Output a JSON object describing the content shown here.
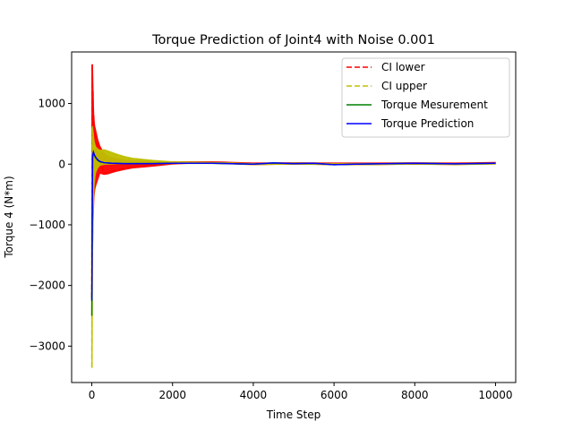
{
  "chart_data": {
    "type": "line",
    "title": "Torque Prediction of Joint4 with Noise 0.001",
    "xlabel": "Time Step",
    "ylabel": "Torque 4 (N*m)",
    "xlim": [
      -500,
      10500
    ],
    "ylim": [
      -3600,
      1850
    ],
    "xticks": [
      0,
      2000,
      4000,
      6000,
      8000,
      10000
    ],
    "yticks": [
      -3000,
      -2000,
      -1000,
      0,
      1000
    ],
    "grid": false,
    "legend_position": "top-right",
    "series": [
      {
        "name": "CI lower",
        "color": "#ff0000",
        "style": "dashed",
        "x": [
          0,
          10,
          20,
          30,
          40,
          50,
          60,
          80,
          100,
          150,
          200,
          300,
          400,
          600,
          800,
          1000,
          1500,
          2000,
          2500,
          3000,
          3300,
          4000,
          5000,
          6000,
          7000,
          8000,
          9000,
          10000
        ],
        "y": [
          -2200,
          1630,
          -600,
          1200,
          -300,
          800,
          -200,
          600,
          400,
          300,
          120,
          -160,
          -140,
          -100,
          -70,
          -50,
          -20,
          20,
          30,
          30,
          25,
          0,
          10,
          5,
          5,
          10,
          5,
          15
        ],
        "envelope_upper": [
          1640,
          1640,
          1640,
          1300,
          1000,
          800,
          700,
          600,
          550,
          400,
          300,
          180,
          130,
          90,
          70,
          55,
          40,
          40,
          40,
          40,
          35,
          20,
          25,
          20,
          20,
          25,
          20,
          30
        ],
        "envelope_lower": [
          -2300,
          -2200,
          -1400,
          -1000,
          -800,
          -600,
          -500,
          -400,
          -350,
          -250,
          -150,
          -170,
          -160,
          -120,
          -90,
          -65,
          -35,
          0,
          15,
          15,
          10,
          -10,
          0,
          -10,
          -10,
          0,
          -10,
          5
        ]
      },
      {
        "name": "CI upper",
        "color": "#bfbf00",
        "style": "dashed",
        "x": [
          0,
          10,
          20,
          30,
          40,
          50,
          60,
          80,
          100,
          150,
          200,
          300,
          400,
          600,
          800,
          1000,
          1500,
          2000,
          2500,
          3000,
          3300,
          4000,
          5000,
          6000,
          7000,
          8000,
          9000,
          10000
        ],
        "y": [
          -3350,
          600,
          -1100,
          400,
          -300,
          350,
          -100,
          300,
          250,
          230,
          200,
          220,
          200,
          150,
          110,
          90,
          50,
          30,
          25,
          20,
          15,
          0,
          10,
          0,
          0,
          10,
          0,
          10
        ],
        "envelope_upper": [
          -2300,
          620,
          620,
          550,
          500,
          430,
          380,
          320,
          280,
          250,
          230,
          240,
          220,
          170,
          130,
          100,
          65,
          40,
          35,
          30,
          25,
          10,
          20,
          10,
          10,
          20,
          10,
          20
        ],
        "envelope_lower": [
          -3350,
          -3350,
          -1500,
          -900,
          -700,
          -500,
          -350,
          -200,
          -130,
          -60,
          -20,
          -5,
          0,
          5,
          5,
          5,
          5,
          10,
          10,
          10,
          5,
          -10,
          0,
          -10,
          -10,
          0,
          -10,
          0
        ]
      },
      {
        "name": "Torque Mesurement",
        "color": "#008000",
        "style": "solid",
        "x": [
          0,
          10,
          20,
          40,
          60,
          100,
          150,
          200,
          300,
          500,
          800,
          1000,
          1500,
          2000,
          3000,
          4000,
          4500,
          5000,
          5500,
          6000,
          6500,
          7000,
          8000,
          9000,
          10000
        ],
        "y": [
          -2500,
          -1000,
          100,
          180,
          150,
          100,
          60,
          40,
          25,
          15,
          10,
          10,
          10,
          15,
          15,
          0,
          20,
          10,
          15,
          -10,
          0,
          5,
          15,
          5,
          15
        ]
      },
      {
        "name": "Torque Prediction",
        "color": "#0000ff",
        "style": "solid",
        "x": [
          0,
          10,
          20,
          40,
          60,
          100,
          150,
          200,
          300,
          500,
          800,
          1000,
          1500,
          2000,
          3000,
          4000,
          4500,
          5000,
          5500,
          6000,
          6500,
          7000,
          8000,
          9000,
          10000
        ],
        "y": [
          -2250,
          -900,
          150,
          200,
          160,
          110,
          70,
          45,
          25,
          15,
          10,
          10,
          10,
          15,
          15,
          0,
          20,
          10,
          15,
          -10,
          0,
          5,
          15,
          5,
          15
        ]
      }
    ]
  }
}
